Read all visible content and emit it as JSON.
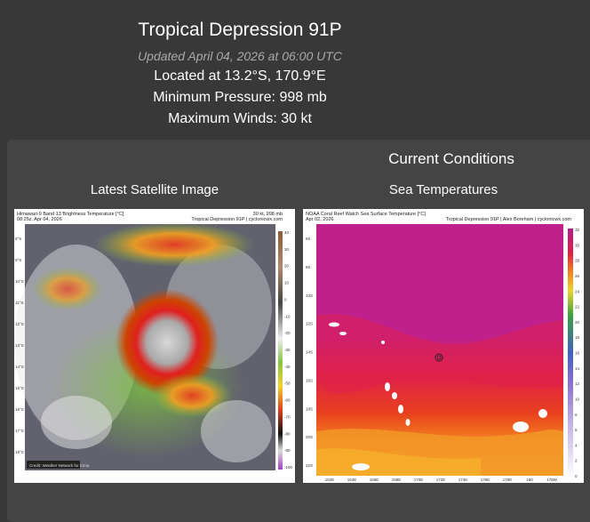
{
  "storm": {
    "title": "Tropical Depression 91P",
    "updated": "Updated April 04, 2026 at 06:00 UTC",
    "location": "Located at 13.2°S, 170.9°E",
    "pressure": "Minimum Pressure: 998 mb",
    "winds": "Maximum Winds: 30 kt"
  },
  "conditions": {
    "title": "Current Conditions",
    "satellite_label": "Latest Satellite Image",
    "sst_label": "Sea Temperatures",
    "satellite": {
      "caption_title": "Himawari-9 Band 13 Brightness Temperature [°C]",
      "caption_time": "08:25z, Apr 04, 2026",
      "caption_right1": "30 kt, 998 mb",
      "caption_right2": "Tropical Depression 91P | cyclonicwx.com",
      "colorbar_ticks": [
        "40",
        "30",
        "20",
        "10",
        "0",
        "-10",
        "-20",
        "-30",
        "-40",
        "-50",
        "-60",
        "-70",
        "-80",
        "-90",
        "-100"
      ],
      "lat_ticks": [
        "8°S",
        "9°S",
        "10°S",
        "11°S",
        "12°S",
        "13°S",
        "14°S",
        "15°S",
        "16°S",
        "17°S",
        "18°S"
      ],
      "credit": "Credit: Weather Network for Cima"
    },
    "sst": {
      "caption_title": "NOAA Coral Reef Watch Sea Surface Temperature [°C]",
      "caption_time": "Apr 02, 2026",
      "caption_right": "Tropical Depression 91P | Alex Boreham | cyclonicwx.com",
      "colorbar_ticks": [
        "32",
        "30",
        "28",
        "26",
        "24",
        "22",
        "20",
        "18",
        "16",
        "14",
        "12",
        "10",
        "8",
        "6",
        "4",
        "2",
        "0"
      ],
      "lat_ticks": [
        "6S",
        "8S",
        "10S",
        "12S",
        "14S",
        "16S",
        "18S",
        "20S",
        "22S"
      ],
      "lon_ticks": [
        "162E",
        "164E",
        "166E",
        "168E",
        "170E",
        "172E",
        "174E",
        "176E",
        "178E",
        "180",
        "178W"
      ]
    }
  },
  "colors": {
    "background": "#383838",
    "panel": "#444444",
    "updated_text": "#a9a9a9"
  }
}
